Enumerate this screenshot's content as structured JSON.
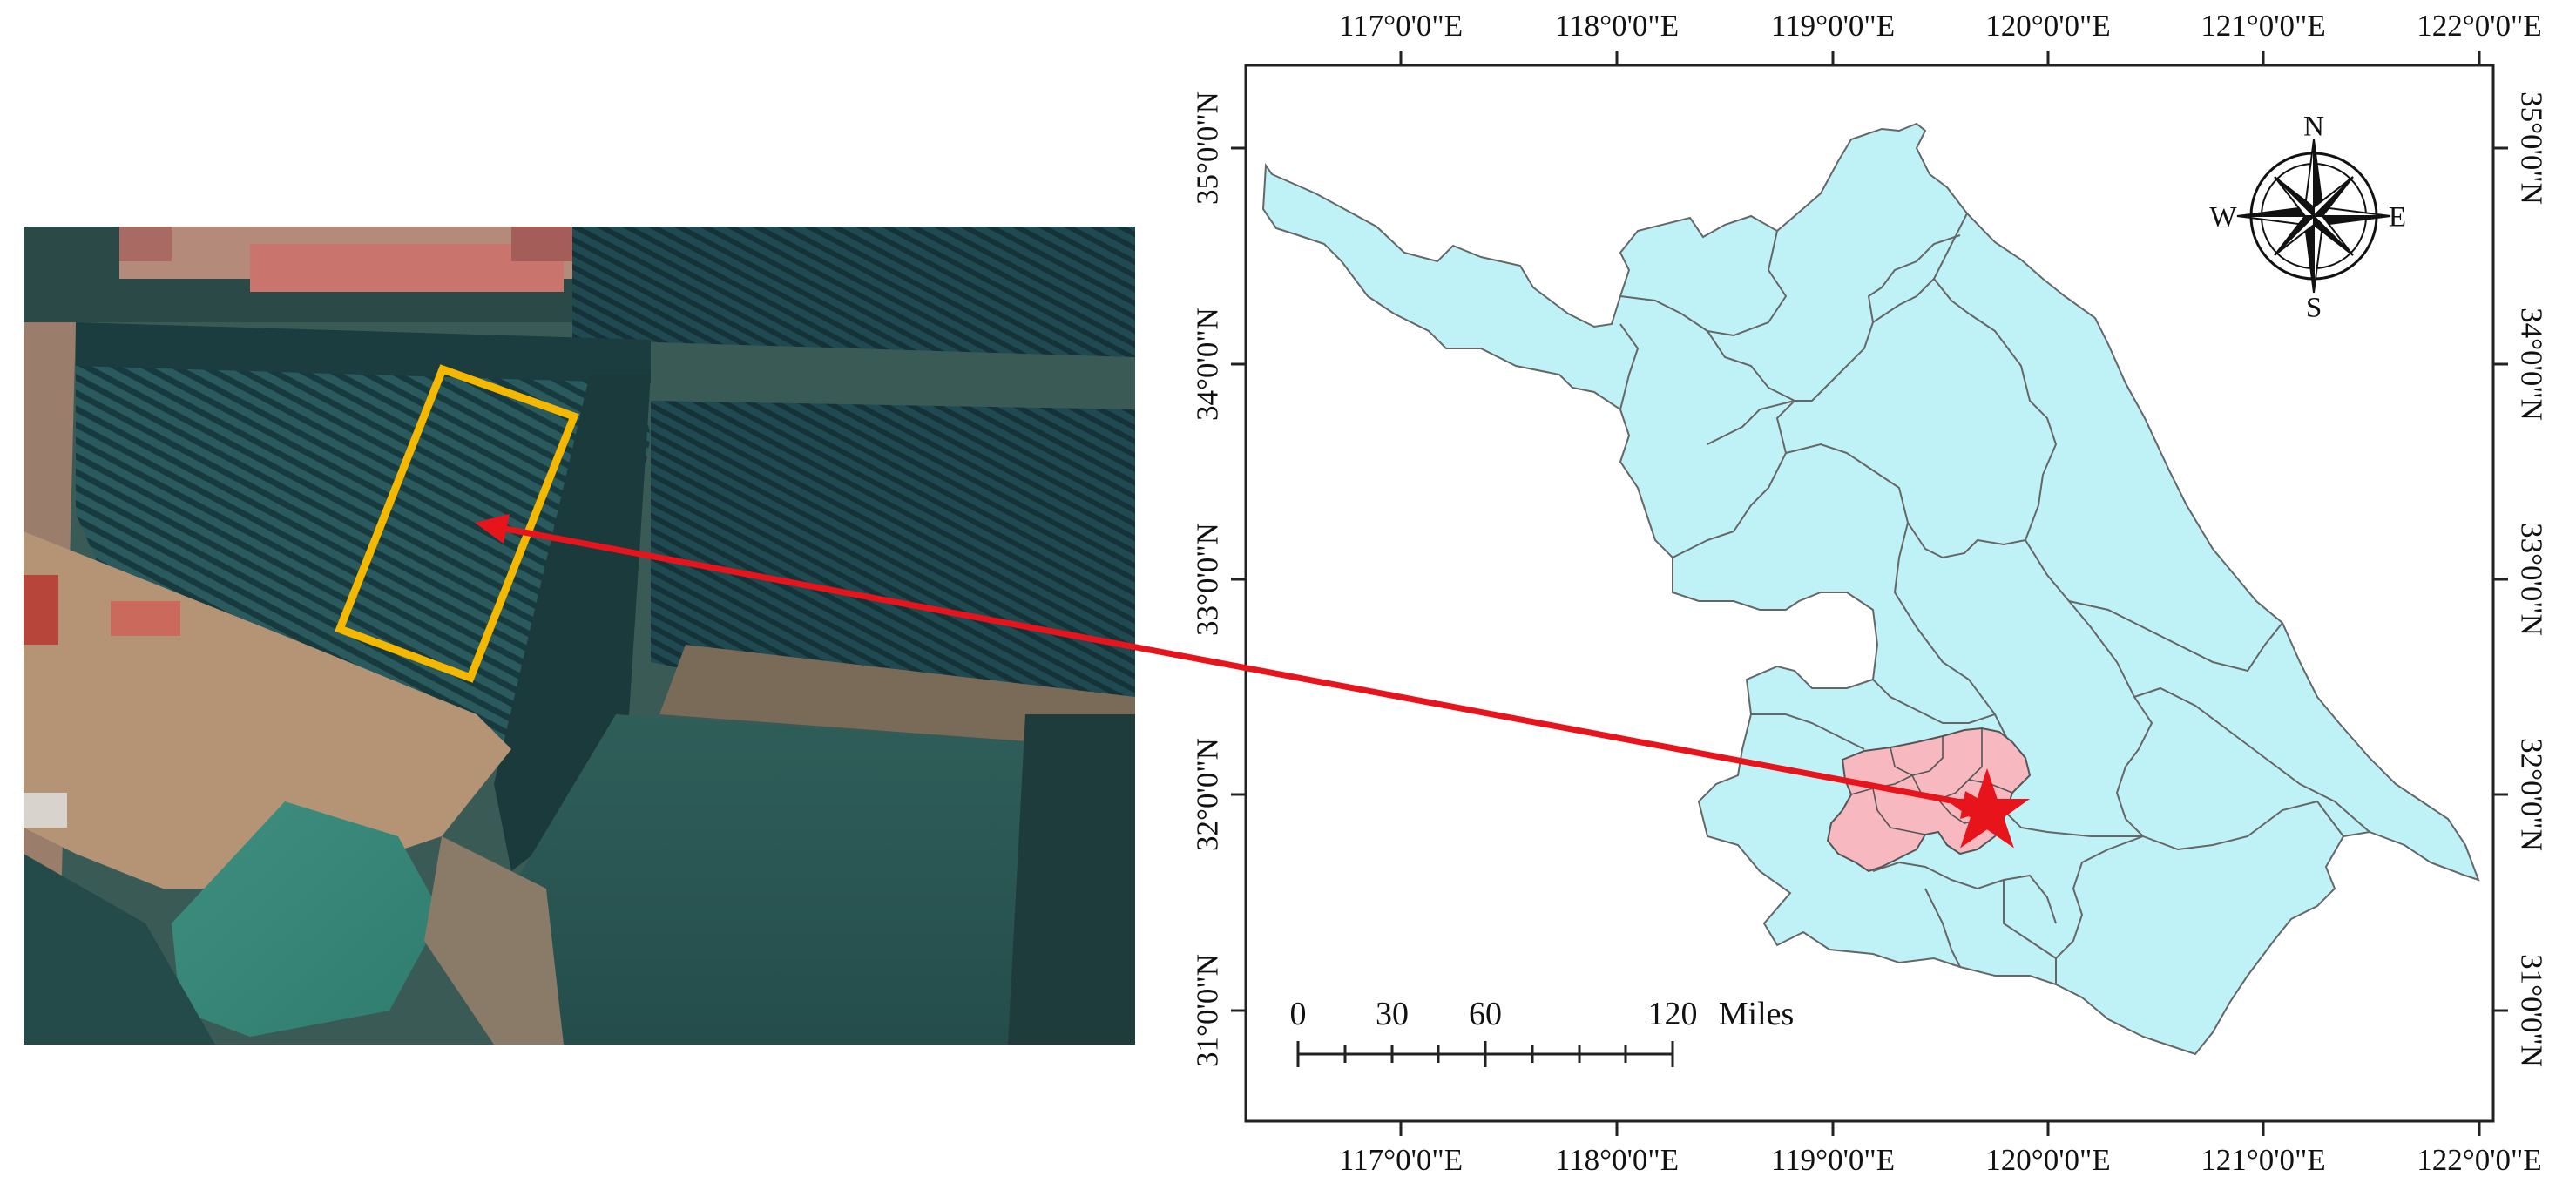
{
  "figure": {
    "satellite_panel": {
      "highlight_color": "#F5B800",
      "content": "orchard-aerial-photo"
    },
    "map_panel": {
      "longitude_labels": [
        "117°0'0\"E",
        "118°0'0\"E",
        "119°0'0\"E",
        "120°0'0\"E",
        "121°0'0\"E",
        "122°0'0\"E"
      ],
      "latitude_labels": [
        "35°0'0\"N",
        "34°0'0\"N",
        "33°0'0\"N",
        "32°0'0\"N",
        "31°0'0\"N"
      ],
      "province_fill": "#BFF2F7",
      "highlight_region_fill": "#F7B8BF",
      "marker": "star",
      "marker_color": "#E8141C"
    },
    "compass": {
      "north": "N",
      "south": "S",
      "east": "E",
      "west": "W"
    },
    "scale_bar": {
      "ticks": [
        "0",
        "30",
        "60",
        "120"
      ],
      "unit": "Miles"
    },
    "arrow_color": "#E8141C"
  }
}
